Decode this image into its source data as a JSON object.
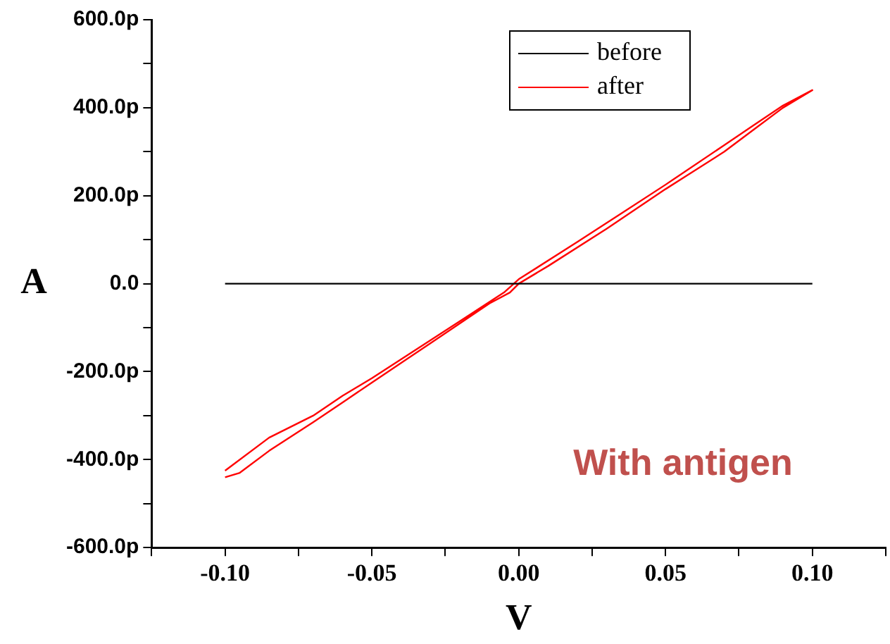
{
  "chart_data": {
    "type": "line",
    "xlabel": "V",
    "ylabel": "A",
    "xlim": [
      -0.125,
      0.125
    ],
    "xticks": [
      {
        "value": -0.125,
        "label": null
      },
      {
        "value": -0.1,
        "label": "-0.10"
      },
      {
        "value": -0.075,
        "label": null
      },
      {
        "value": -0.05,
        "label": "-0.05"
      },
      {
        "value": -0.025,
        "label": null
      },
      {
        "value": 0,
        "label": "0.00"
      },
      {
        "value": 0.025,
        "label": null
      },
      {
        "value": 0.05,
        "label": "0.05"
      },
      {
        "value": 0.075,
        "label": null
      },
      {
        "value": 0.1,
        "label": "0.10"
      },
      {
        "value": 0.125,
        "label": null
      }
    ],
    "ylim": [
      -600,
      600
    ],
    "yticks": [
      {
        "value": -600,
        "label": "-600.0p"
      },
      {
        "value": -500,
        "label": null
      },
      {
        "value": -400,
        "label": "-400.0p"
      },
      {
        "value": -300,
        "label": null
      },
      {
        "value": -200,
        "label": "-200.0p"
      },
      {
        "value": -100,
        "label": null
      },
      {
        "value": 0,
        "label": "0.0"
      },
      {
        "value": 100,
        "label": null
      },
      {
        "value": 200,
        "label": "200.0p"
      },
      {
        "value": 300,
        "label": null
      },
      {
        "value": 400,
        "label": "400.0p"
      },
      {
        "value": 500,
        "label": null
      },
      {
        "value": 600,
        "label": "600.0p"
      }
    ],
    "series": [
      {
        "name": "before",
        "color": "#000000",
        "x": [
          -0.1,
          -0.05,
          0,
          0.05,
          0.1
        ],
        "values": [
          0,
          0,
          0,
          0,
          0
        ]
      },
      {
        "name": "after",
        "color": "#ff0000",
        "x": [
          -0.1,
          -0.095,
          -0.085,
          -0.07,
          -0.06,
          -0.05,
          -0.03,
          -0.01,
          -0.003,
          0,
          0.01,
          0.03,
          0.05,
          0.07,
          0.08,
          0.09,
          0.1,
          0.09,
          0.08,
          0.07,
          0.05,
          0.035,
          0.02,
          0,
          -0.005,
          -0.02,
          -0.05,
          -0.06,
          -0.07,
          -0.085,
          -0.1
        ],
        "values": [
          -440,
          -430,
          -380,
          -315,
          -270,
          -225,
          -135,
          -45,
          -20,
          0,
          40,
          125,
          215,
          300,
          350,
          400,
          440,
          405,
          360,
          315,
          225,
          160,
          95,
          10,
          -20,
          -85,
          -215,
          -255,
          -300,
          -350,
          -425
        ]
      }
    ],
    "legend": "top right",
    "grid": false,
    "marker": "none",
    "line_style": "solid",
    "annotations": [
      "With antigen"
    ]
  }
}
